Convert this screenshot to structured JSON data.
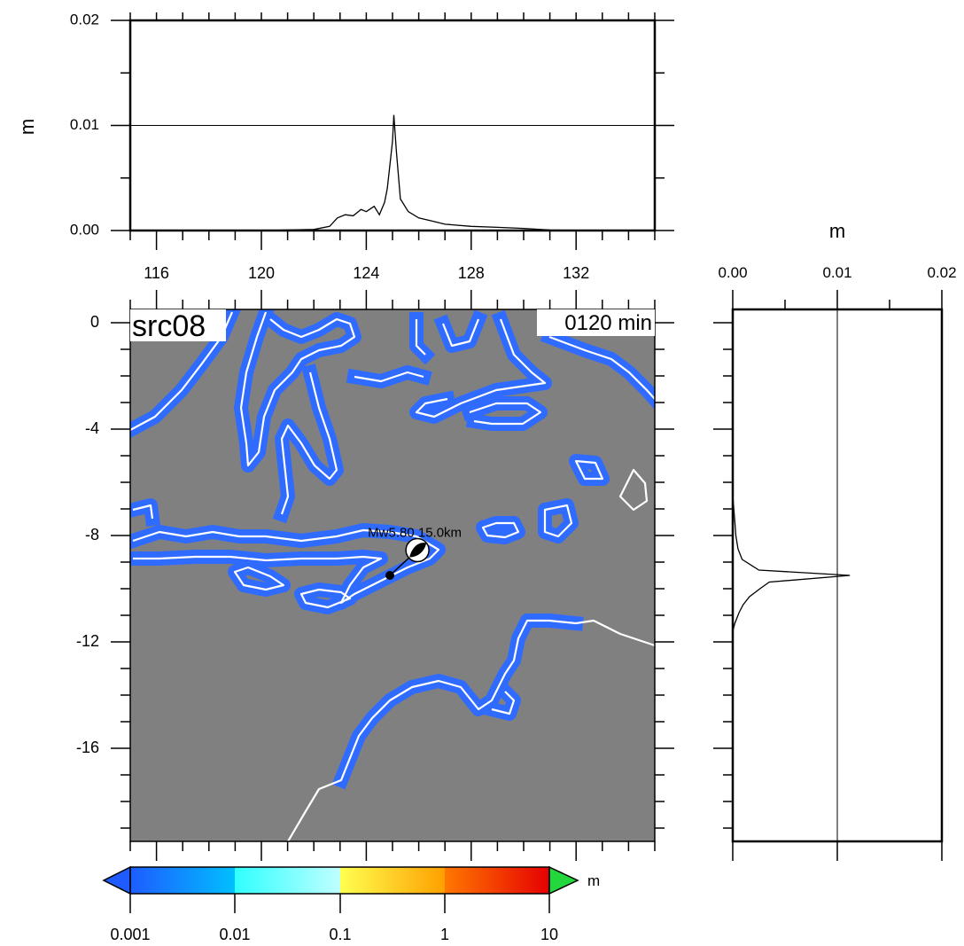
{
  "map": {
    "label": "src08",
    "time_label": "0120 min",
    "lon_ticks": [
      "116",
      "120",
      "124",
      "128",
      "132"
    ],
    "lat_ticks": [
      "0",
      "-4",
      "-8",
      "-12",
      "-16"
    ],
    "lon_range": [
      115,
      135
    ],
    "lat_range": [
      -19.5,
      0.5
    ],
    "ocean_color": "#808080",
    "coast_color": "#ffffff",
    "wave_color": "#2f6bff"
  },
  "source": {
    "label": "Mw5.80  15.0km",
    "epicenter": {
      "lon": 125.95,
      "lat": -8.55
    },
    "station": {
      "lon": 124.9,
      "lat": -9.5
    }
  },
  "top_profile": {
    "ylabel": "m",
    "y_ticks": [
      "0.00",
      "0.01",
      "0.02"
    ],
    "y_range": [
      0,
      0.02
    ],
    "ref_value": 0.01,
    "profile": [
      [
        120,
        0
      ],
      [
        122,
        0.0001
      ],
      [
        122.6,
        0.0004
      ],
      [
        122.9,
        0.0012
      ],
      [
        123.2,
        0.0015
      ],
      [
        123.5,
        0.0014
      ],
      [
        123.8,
        0.002
      ],
      [
        124.0,
        0.0018
      ],
      [
        124.3,
        0.0023
      ],
      [
        124.5,
        0.0015
      ],
      [
        124.7,
        0.0027
      ],
      [
        124.8,
        0.004
      ],
      [
        124.9,
        0.0062
      ],
      [
        125.0,
        0.0085
      ],
      [
        125.05,
        0.011
      ],
      [
        125.15,
        0.0075
      ],
      [
        125.3,
        0.003
      ],
      [
        125.6,
        0.0018
      ],
      [
        126.0,
        0.0012
      ],
      [
        126.5,
        0.0009
      ],
      [
        127,
        0.0006
      ],
      [
        128,
        0.0004
      ],
      [
        129,
        0.0003
      ],
      [
        130,
        0.0002
      ],
      [
        131,
        5e-05
      ],
      [
        132,
        0
      ]
    ]
  },
  "side_profile": {
    "xlabel": "m",
    "x_ticks": [
      "0.00",
      "0.01",
      "0.02"
    ],
    "x_range": [
      0,
      0.02
    ],
    "ref_value": 0.01,
    "profile": [
      [
        0,
        -6.5
      ],
      [
        0.0002,
        -7.5
      ],
      [
        0.0003,
        -8.0
      ],
      [
        0.0005,
        -8.5
      ],
      [
        0.0009,
        -8.9
      ],
      [
        0.0025,
        -9.3
      ],
      [
        0.0112,
        -9.5
      ],
      [
        0.0035,
        -9.75
      ],
      [
        0.0026,
        -10.0
      ],
      [
        0.0016,
        -10.3
      ],
      [
        0.001,
        -10.6
      ],
      [
        0.0006,
        -10.9
      ],
      [
        0.0002,
        -11.3
      ],
      [
        0,
        -11.6
      ]
    ]
  },
  "colorbar": {
    "unit": "m",
    "labels": [
      "0.001",
      "0.01",
      "0.1",
      "1",
      "10"
    ],
    "colors": [
      "#1e5cff",
      "#00c8ff",
      "#40ffff",
      "#ffff50",
      "#ffa000",
      "#ff3c00",
      "#e60000"
    ],
    "under_color": "#1e5cff",
    "over_color": "#23d73c"
  }
}
